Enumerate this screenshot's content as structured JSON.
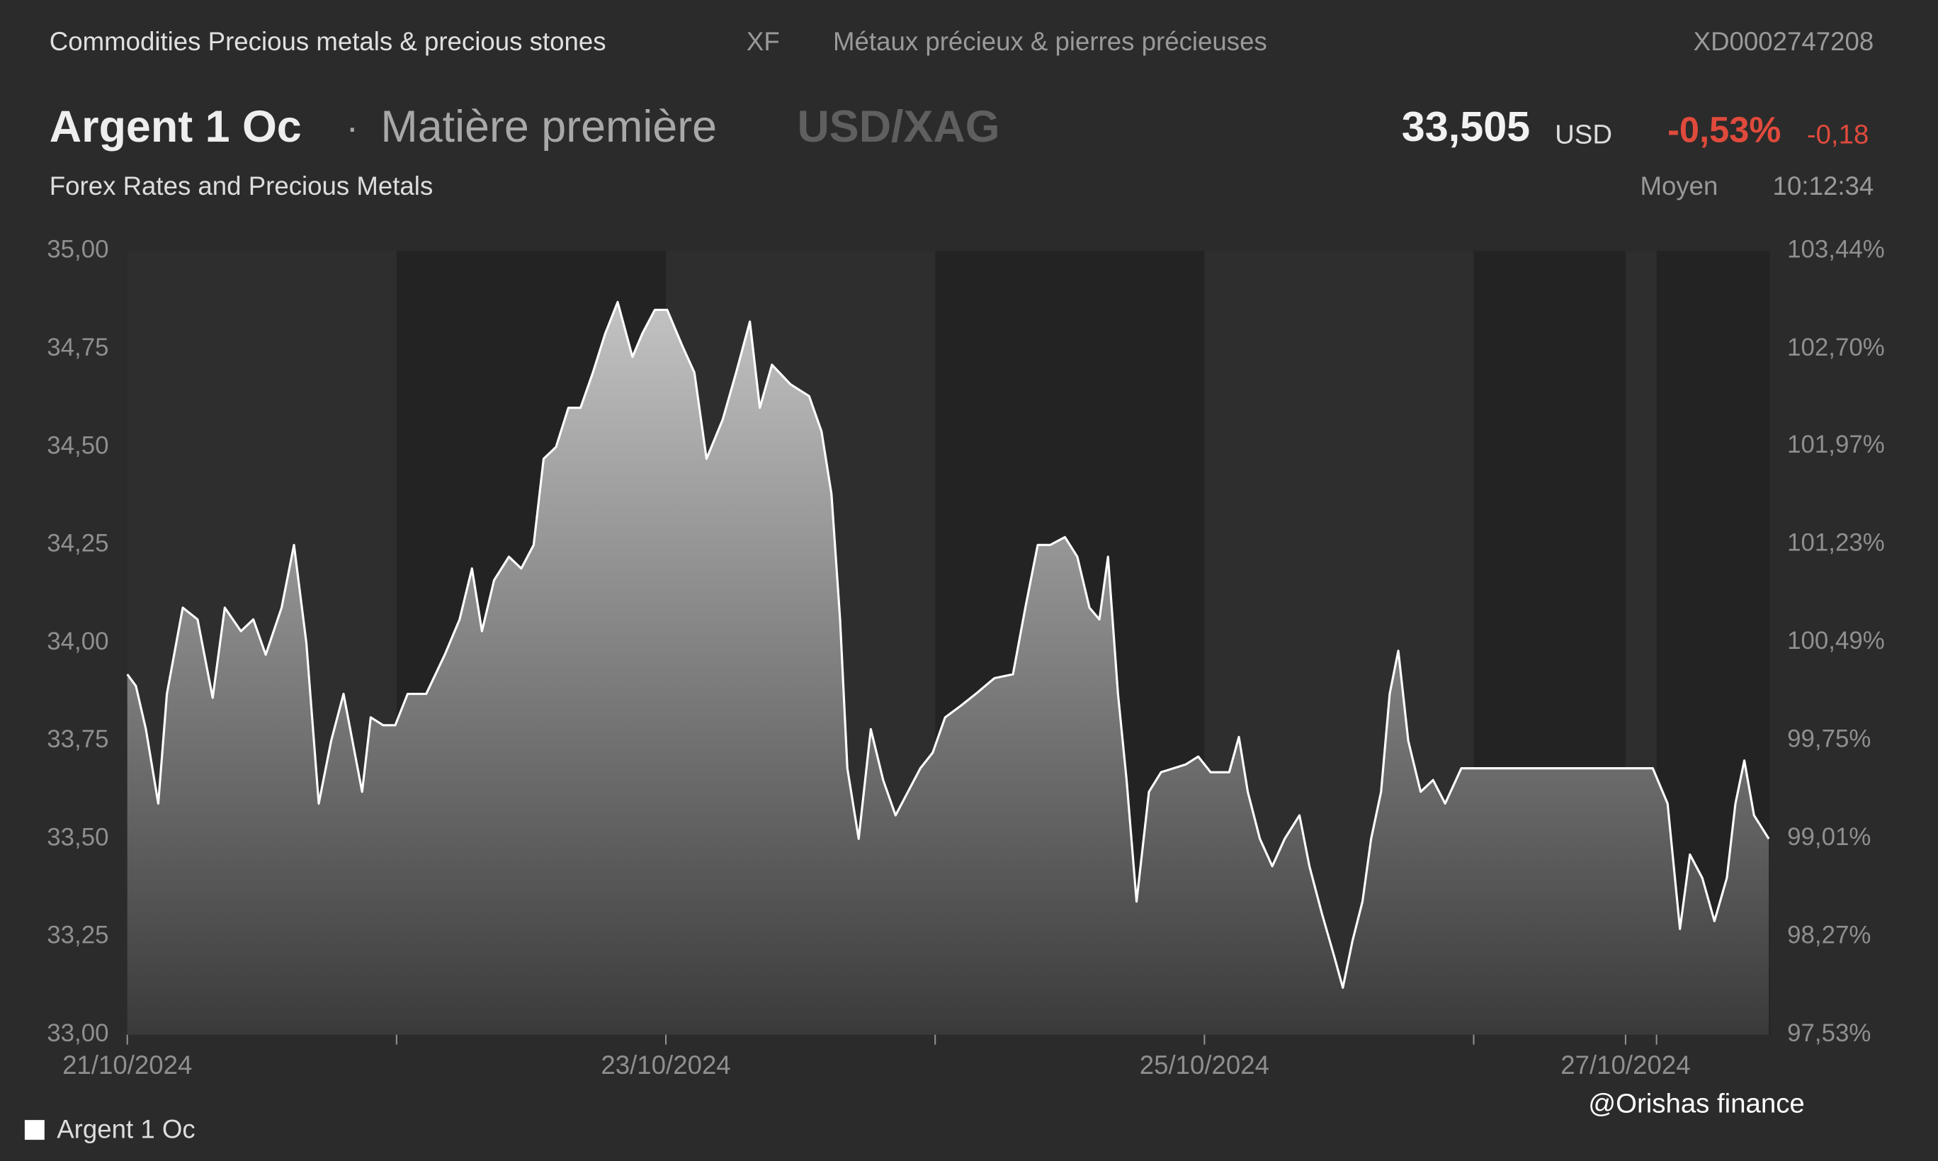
{
  "header": {
    "category": "Commodities Precious metals & precious stones",
    "exchange": "XF",
    "category_fr": "Métaux précieux & pierres précieuses",
    "isin": "XD0002747208",
    "name": "Argent 1 Oc",
    "separator": "·",
    "asset_type": "Matière première",
    "pair": "USD/XAG",
    "price": "33,505",
    "currency": "USD",
    "change_pct": "-0,53%",
    "change": "-0,18",
    "source": "Forex Rates and Precious Metals",
    "quote_type": "Moyen",
    "time": "10:12:34"
  },
  "watermark": "@Orishas finance",
  "chart_data": {
    "type": "area",
    "series": [
      {
        "name": "Argent 1 Oc",
        "color": "#ffffff",
        "x": [
          0,
          0.032,
          0.069,
          0.115,
          0.147,
          0.206,
          0.261,
          0.317,
          0.362,
          0.422,
          0.468,
          0.514,
          0.573,
          0.619,
          0.665,
          0.711,
          0.757,
          0.803,
          0.872,
          0.904,
          0.95,
          0.995,
          1.041,
          1.11,
          1.179,
          1.234,
          1.28,
          1.317,
          1.362,
          1.417,
          1.463,
          1.509,
          1.546,
          1.592,
          1.638,
          1.683,
          1.729,
          1.775,
          1.821,
          1.876,
          1.913,
          1.959,
          2.005,
          2.06,
          2.106,
          2.151,
          2.211,
          2.261,
          2.312,
          2.349,
          2.394,
          2.463,
          2.532,
          2.578,
          2.615,
          2.647,
          2.674,
          2.716,
          2.761,
          2.807,
          2.853,
          2.899,
          2.945,
          2.991,
          3.037,
          3.096,
          3.151,
          3.22,
          3.289,
          3.335,
          3.381,
          3.427,
          3.482,
          3.528,
          3.573,
          3.61,
          3.642,
          3.679,
          3.711,
          3.748,
          3.794,
          3.839,
          3.885,
          3.931,
          3.977,
          4.023,
          4.092,
          4.128,
          4.161,
          4.206,
          4.252,
          4.298,
          4.353,
          4.39,
          4.436,
          4.482,
          4.514,
          4.55,
          4.587,
          4.619,
          4.656,
          4.688,
          4.72,
          4.757,
          4.803,
          4.849,
          4.894,
          4.954,
          5.665,
          5.72,
          5.766,
          5.803,
          5.849,
          5.894,
          5.94,
          5.972,
          6.005,
          6.041,
          6.096
        ],
        "values": [
          33.92,
          33.89,
          33.78,
          33.59,
          33.87,
          34.09,
          34.06,
          33.86,
          34.09,
          34.03,
          34.06,
          33.97,
          34.09,
          34.25,
          34.0,
          33.59,
          33.75,
          33.87,
          33.62,
          33.81,
          33.79,
          33.79,
          33.87,
          33.87,
          33.97,
          34.06,
          34.19,
          34.03,
          34.16,
          34.22,
          34.19,
          34.25,
          34.47,
          34.5,
          34.6,
          34.6,
          34.69,
          34.79,
          34.87,
          34.73,
          34.79,
          34.85,
          34.85,
          34.76,
          34.69,
          34.47,
          34.57,
          34.69,
          34.82,
          34.6,
          34.71,
          34.66,
          34.63,
          34.54,
          34.38,
          34.06,
          33.68,
          33.5,
          33.78,
          33.65,
          33.56,
          33.62,
          33.68,
          33.72,
          33.81,
          33.84,
          33.87,
          33.91,
          33.92,
          34.09,
          34.25,
          34.25,
          34.27,
          34.22,
          34.09,
          34.06,
          34.22,
          33.87,
          33.65,
          33.34,
          33.62,
          33.67,
          33.68,
          33.69,
          33.71,
          33.67,
          33.67,
          33.76,
          33.62,
          33.5,
          33.43,
          33.5,
          33.56,
          33.43,
          33.31,
          33.2,
          33.12,
          33.24,
          33.34,
          33.5,
          33.62,
          33.87,
          33.98,
          33.75,
          33.62,
          33.65,
          33.59,
          33.68,
          33.68,
          33.59,
          33.27,
          33.46,
          33.4,
          33.29,
          33.4,
          33.59,
          33.7,
          33.56,
          33.5
        ]
      }
    ],
    "xlim": [
      0,
      6.1
    ],
    "xticks": [
      {
        "value": 0,
        "label": "21/10/2024"
      },
      {
        "value": 1,
        "label": null
      },
      {
        "value": 2,
        "label": "23/10/2024"
      },
      {
        "value": 3,
        "label": null
      },
      {
        "value": 4,
        "label": "25/10/2024"
      },
      {
        "value": 5,
        "label": null
      },
      {
        "value": 5.564,
        "label": "27/10/2024"
      },
      {
        "value": 5.679,
        "label": null
      }
    ],
    "shaded_x_ranges": [
      [
        1,
        2
      ],
      [
        3,
        4
      ],
      [
        5,
        5.564
      ],
      [
        5.679,
        6.1
      ]
    ],
    "ylim": [
      33,
      35
    ],
    "yticks": [
      {
        "value": 33,
        "label": "33,00"
      },
      {
        "value": 33.25,
        "label": "33,25"
      },
      {
        "value": 33.5,
        "label": "33,50"
      },
      {
        "value": 33.75,
        "label": "33,75"
      },
      {
        "value": 34,
        "label": "34,00"
      },
      {
        "value": 34.25,
        "label": "34,25"
      },
      {
        "value": 34.5,
        "label": "34,50"
      },
      {
        "value": 34.75,
        "label": "34,75"
      },
      {
        "value": 35,
        "label": "35,00"
      }
    ],
    "y2lim": [
      97.53,
      103.44
    ],
    "y2ticks": [
      {
        "value": 97.53,
        "label": "97,53%"
      },
      {
        "value": 98.27,
        "label": "98,27%"
      },
      {
        "value": 99.01,
        "label": "99,01%"
      },
      {
        "value": 99.75,
        "label": "99,75%"
      },
      {
        "value": 100.49,
        "label": "100,49%"
      },
      {
        "value": 101.23,
        "label": "101,23%"
      },
      {
        "value": 101.97,
        "label": "101,97%"
      },
      {
        "value": 102.7,
        "label": "102,70%"
      },
      {
        "value": 103.44,
        "label": "103,44%"
      }
    ],
    "grid": false,
    "legend": "bottom-left"
  }
}
